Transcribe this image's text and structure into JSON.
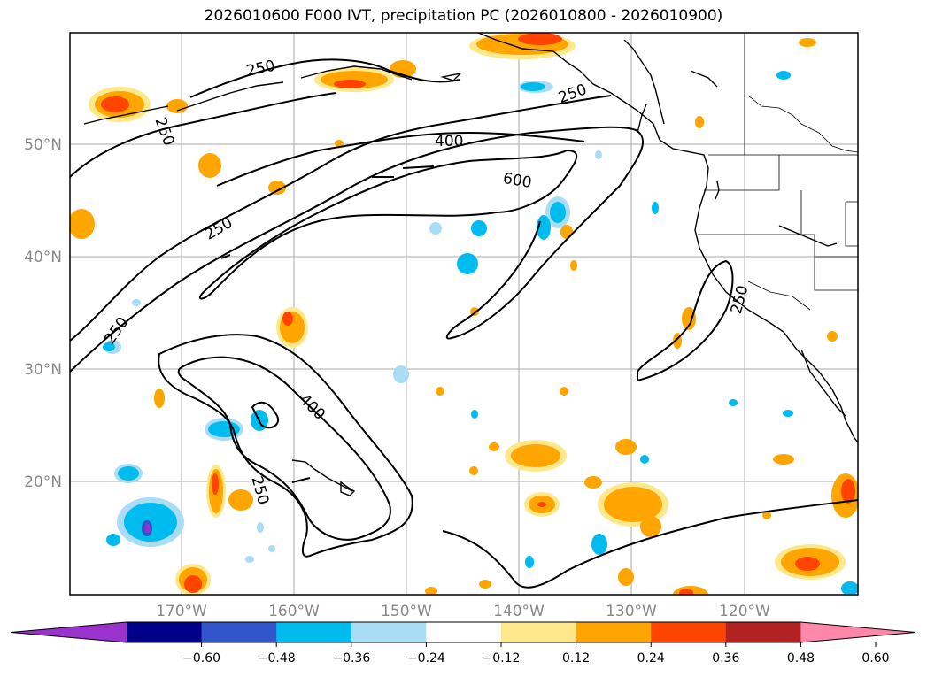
{
  "title": "2026010600 F000 IVT, precipitation PC (2026010800 - 2026010900)",
  "colors": {
    "grid": "#aaaaaa",
    "axis_label": "#888888",
    "contour": "#000000"
  },
  "map": {
    "lat_labels": [
      "50°N",
      "40°N",
      "30°N",
      "20°N"
    ],
    "lon_labels": [
      "170°W",
      "160°W",
      "150°W",
      "140°W",
      "130°W",
      "120°W"
    ],
    "contour_labels": [
      "250",
      "250",
      "250",
      "250",
      "250",
      "250",
      "400",
      "600",
      "400",
      "250"
    ]
  },
  "colorbar": {
    "colors": [
      "#9933cc",
      "#000088",
      "#3355cc",
      "#00bbee",
      "#aaddf5",
      "#ffffff",
      "#ffe88a",
      "#ffa500",
      "#ff4400",
      "#b22222",
      "#ff88aa"
    ],
    "ticks": [
      "−0.60",
      "−0.48",
      "−0.36",
      "−0.24",
      "−0.12",
      "0.12",
      "0.24",
      "0.36",
      "0.48",
      "0.60"
    ]
  }
}
